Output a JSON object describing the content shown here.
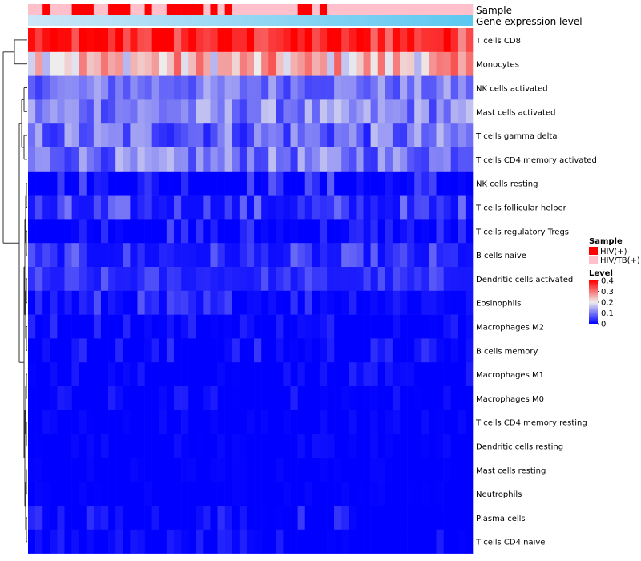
{
  "chart_data": {
    "type": "heatmap",
    "title": "",
    "annotation_tracks": [
      {
        "label": "Sample"
      },
      {
        "label": "Gene expression level"
      }
    ],
    "rows": [
      "T cells CD8",
      "Monocytes",
      "NK cells activated",
      "Mast cells activated",
      "T cells gamma delta",
      "T cells CD4 memory activated",
      "NK cells resting",
      "T cells follicular helper",
      "T cells regulatory  Tregs",
      "B cells naive",
      "Dendritic cells activated",
      "Eosinophils",
      "Macrophages M2",
      "B cells memory",
      "Macrophages M1",
      "Macrophages M0",
      "T cells CD4 memory resting",
      "Dendritic cells resting",
      "Mast cells resting",
      "Neutrophils",
      "Plasma cells",
      "T cells CD4 naive"
    ],
    "row_profiles": [
      {
        "mean": 0.34,
        "spread": 0.08,
        "skew": "high"
      },
      {
        "mean": 0.24,
        "spread": 0.09,
        "skew": "mixed"
      },
      {
        "mean": 0.1,
        "spread": 0.05,
        "skew": "mixed"
      },
      {
        "mean": 0.11,
        "spread": 0.06,
        "skew": "mixed"
      },
      {
        "mean": 0.09,
        "spread": 0.07,
        "skew": "mixed"
      },
      {
        "mean": 0.1,
        "spread": 0.06,
        "skew": "mixed"
      },
      {
        "mean": 0.04,
        "spread": 0.05,
        "skew": "low"
      },
      {
        "mean": 0.06,
        "spread": 0.05,
        "skew": "low"
      },
      {
        "mean": 0.03,
        "spread": 0.04,
        "skew": "low"
      },
      {
        "mean": 0.05,
        "spread": 0.04,
        "skew": "low"
      },
      {
        "mean": 0.05,
        "spread": 0.03,
        "skew": "low"
      },
      {
        "mean": 0.04,
        "spread": 0.04,
        "skew": "low"
      },
      {
        "mean": 0.02,
        "spread": 0.03,
        "skew": "low"
      },
      {
        "mean": 0.02,
        "spread": 0.03,
        "skew": "low"
      },
      {
        "mean": 0.01,
        "spread": 0.02,
        "skew": "low"
      },
      {
        "mean": 0.01,
        "spread": 0.02,
        "skew": "low"
      },
      {
        "mean": 0.005,
        "spread": 0.01,
        "skew": "low"
      },
      {
        "mean": 0.005,
        "spread": 0.01,
        "skew": "low"
      },
      {
        "mean": 0.002,
        "spread": 0.005,
        "skew": "low"
      },
      {
        "mean": 0.002,
        "spread": 0.005,
        "skew": "low"
      },
      {
        "mean": 0.02,
        "spread": 0.04,
        "skew": "low"
      },
      {
        "mean": 0.01,
        "spread": 0.02,
        "skew": "low"
      }
    ],
    "sample_groups": "0010001110011100100111110101000000000110100000000000000000000",
    "legend_sample": {
      "title": "Sample",
      "entries": [
        {
          "label": "HIV(+)",
          "color": "#ff0000"
        },
        {
          "label": "HIV/TB(+)",
          "color": "#ffc0cb"
        }
      ]
    },
    "legend_level": {
      "title": "Level",
      "ticks": [
        "0.4",
        "0.3",
        "0.2",
        "0.1",
        "0"
      ],
      "tick_values": [
        0.4,
        0.3,
        0.2,
        0.1,
        0
      ],
      "range": [
        0,
        0.4
      ],
      "colors": {
        "low": "#0000ff",
        "mid": "#eeeeee",
        "high": "#ff0000"
      }
    },
    "expression_gradient": {
      "start": "#cde6f7",
      "end": "#5cc8f0"
    }
  }
}
